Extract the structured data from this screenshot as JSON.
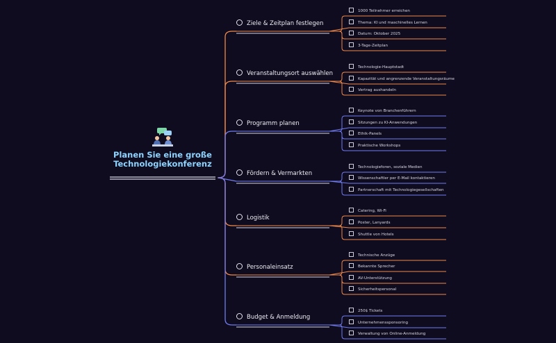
{
  "root": {
    "title_line1": "Planen Sie eine große",
    "title_line2": "Technologiekonferenz",
    "icon": "meeting-people-icon"
  },
  "colors": {
    "background": "#100c1f",
    "root_text": "#8fd4ff",
    "branches": [
      "#f08a4b",
      "#f08a4b",
      "#6f7bf0",
      "#6f7bf0",
      "#f08a4b",
      "#f08a4b",
      "#6f7bf0"
    ]
  },
  "branches": [
    {
      "label": "Ziele & Zeitplan festlegen",
      "items": [
        "1000 Teilnehmer erreichen",
        "Thema: KI und maschinelles Lernen",
        "Datum: Oktober 2025",
        "3-Tage-Zeitplan"
      ]
    },
    {
      "label": "Veranstaltungsort auswählen",
      "items": [
        "Technologie-Hauptstadt",
        "Kapazität und angrenzende Veranstaltungsräume",
        "Vertrag aushandeln"
      ]
    },
    {
      "label": "Programm planen",
      "items": [
        "Keynote von Branchenführern",
        "Sitzungen zu KI-Anwendungen",
        "Ethik-Panels",
        "Praktische Workshops"
      ]
    },
    {
      "label": "Fördern & Vermarkten",
      "items": [
        "Technologieforen, soziale Medien",
        "Wissenschaftler per E-Mail kontaktieren",
        "Partnerschaft mit Technologiegesellschaften"
      ]
    },
    {
      "label": "Logistik",
      "items": [
        "Catering, Wi-Fi",
        "Poster, Lanyards",
        "Shuttle von Hotels"
      ]
    },
    {
      "label": "Personaleinsatz",
      "items": [
        "Technische Anzüge",
        "Bekannte Sprecher",
        "AV-Unterstützung",
        "Sicherheitspersonal"
      ]
    },
    {
      "label": "Budget & Anmeldung",
      "items": [
        "250$ Tickets",
        "Unternehmenssponsoring",
        "Verwaltung von Online-Anmeldung"
      ]
    }
  ]
}
